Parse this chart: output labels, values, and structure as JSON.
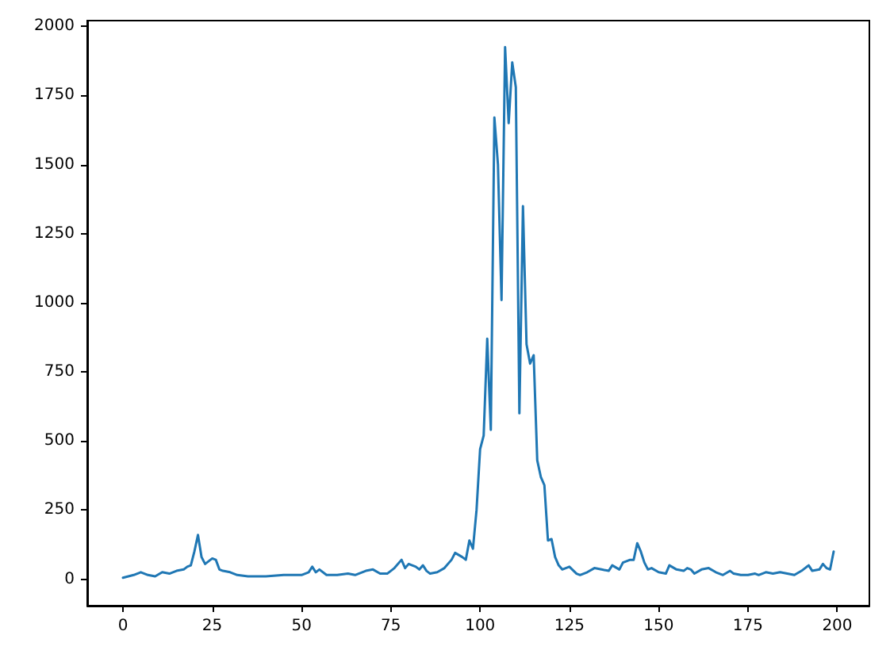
{
  "chart_data": {
    "type": "line",
    "x": [
      0,
      3,
      5,
      7,
      9,
      11,
      13,
      15,
      17,
      18,
      19,
      20,
      21,
      22,
      23,
      24,
      25,
      26,
      27,
      28,
      30,
      32,
      35,
      40,
      45,
      50,
      52,
      53,
      54,
      55,
      57,
      60,
      63,
      65,
      68,
      70,
      72,
      74,
      76,
      78,
      79,
      80,
      82,
      83,
      84,
      85,
      86,
      88,
      90,
      92,
      93,
      95,
      96,
      97,
      98,
      99,
      100,
      101,
      102,
      103,
      104,
      105,
      106,
      107,
      108,
      109,
      110,
      111,
      112,
      113,
      114,
      115,
      116,
      117,
      118,
      119,
      120,
      121,
      122,
      123,
      125,
      127,
      128,
      130,
      132,
      134,
      136,
      137,
      139,
      140,
      142,
      143,
      144,
      145,
      146,
      147,
      148,
      150,
      152,
      153,
      155,
      157,
      158,
      159,
      160,
      162,
      164,
      166,
      168,
      170,
      171,
      173,
      175,
      177,
      178,
      180,
      182,
      184,
      186,
      188,
      190,
      191,
      192,
      193,
      195,
      196,
      197,
      198,
      199
    ],
    "series": [
      {
        "color": "#1f77b4",
        "values": [
          5,
          15,
          25,
          15,
          10,
          25,
          20,
          30,
          35,
          45,
          50,
          100,
          160,
          80,
          55,
          65,
          75,
          70,
          35,
          30,
          25,
          15,
          10,
          10,
          15,
          15,
          25,
          45,
          25,
          35,
          15,
          15,
          20,
          15,
          30,
          35,
          20,
          20,
          40,
          70,
          40,
          55,
          45,
          35,
          50,
          30,
          20,
          25,
          40,
          70,
          95,
          80,
          70,
          140,
          110,
          250,
          470,
          520,
          870,
          540,
          1670,
          1500,
          1010,
          1925,
          1650,
          1870,
          1780,
          600,
          1350,
          850,
          780,
          810,
          430,
          370,
          340,
          140,
          145,
          80,
          50,
          35,
          45,
          20,
          15,
          25,
          40,
          35,
          30,
          50,
          35,
          60,
          70,
          70,
          130,
          100,
          60,
          35,
          40,
          25,
          20,
          50,
          35,
          30,
          40,
          35,
          20,
          35,
          40,
          25,
          15,
          30,
          20,
          15,
          15,
          20,
          15,
          25,
          20,
          25,
          20,
          15,
          30,
          40,
          50,
          30,
          35,
          55,
          40,
          35,
          100
        ]
      }
    ],
    "xlim": [
      -10,
      209
    ],
    "ylim": [
      -96,
      2021
    ],
    "xticks": [
      0,
      25,
      50,
      75,
      100,
      125,
      150,
      175,
      200
    ],
    "yticks": [
      0,
      250,
      500,
      750,
      1000,
      1250,
      1500,
      1750,
      2000
    ],
    "grid": false,
    "marker": "none",
    "line_style": "solid"
  }
}
